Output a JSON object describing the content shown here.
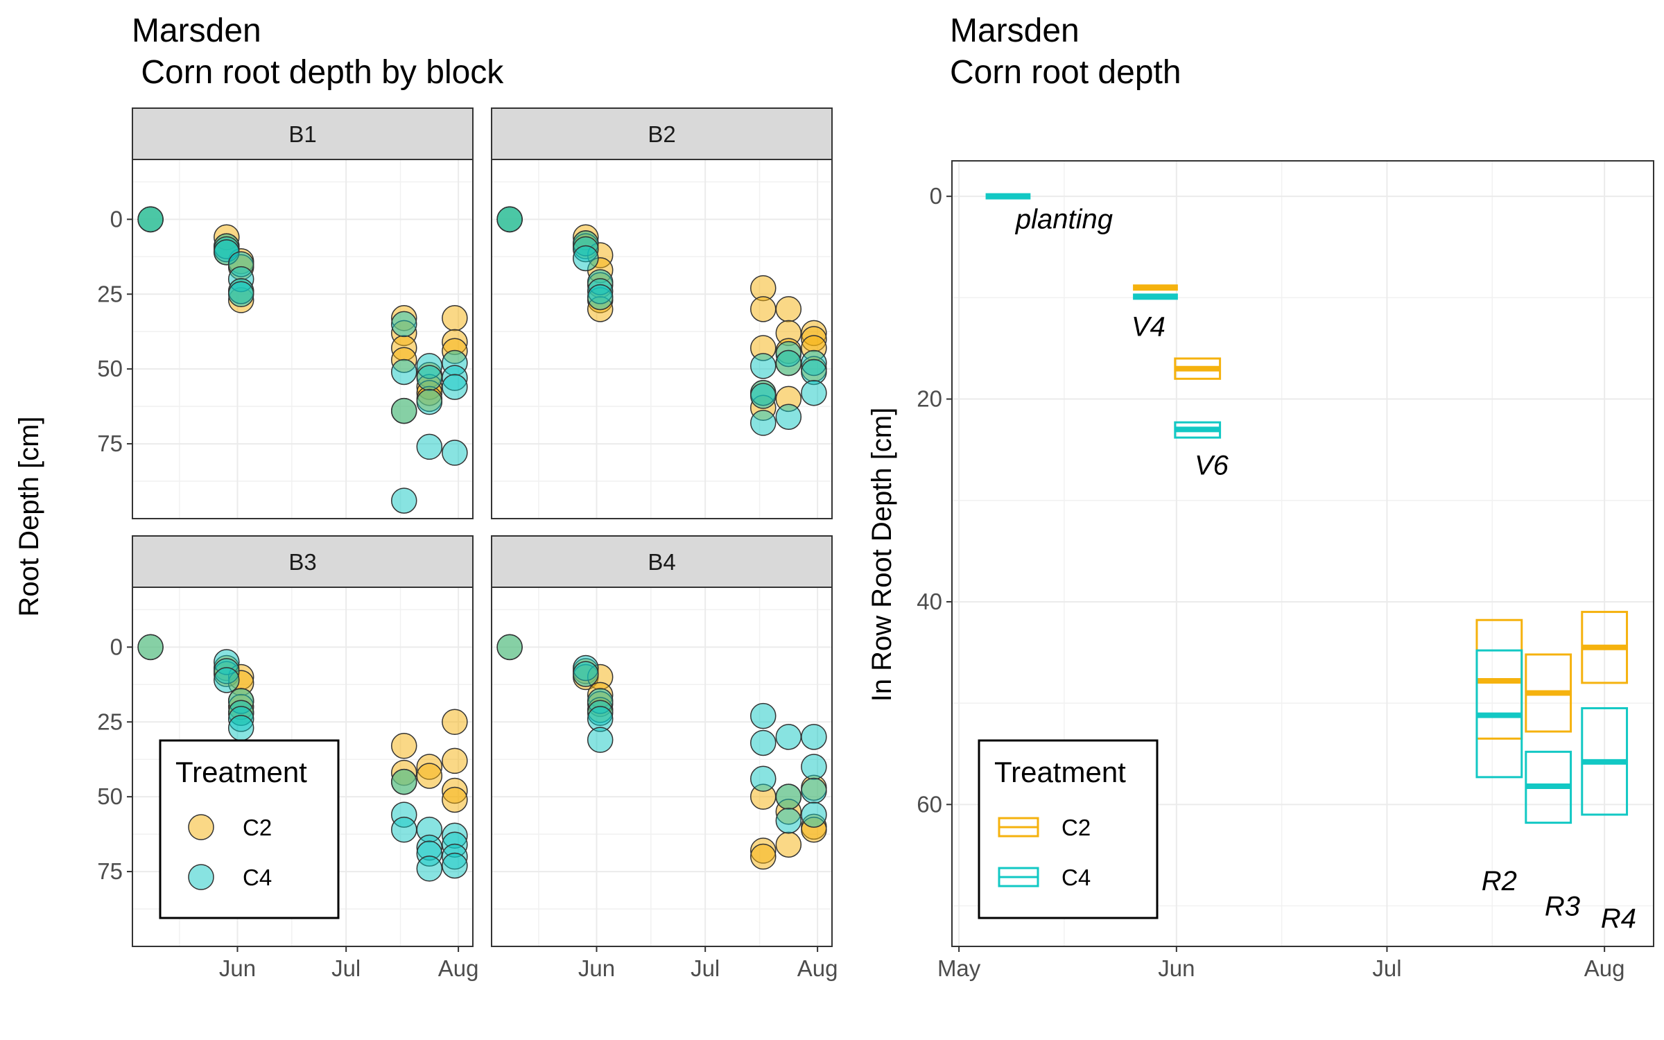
{
  "colors": {
    "C2": "#F5B20E",
    "C4": "#12C8C4"
  },
  "chart_data": [
    {
      "type": "scatter",
      "title": "Marsden",
      "subtitle": " Corn root depth by block",
      "ylabel": "Root Depth [cm]",
      "xlabel": "",
      "x_ticks": [
        "Jun",
        "Jul",
        "Aug"
      ],
      "x_tick_dates": [
        "2018-06-01",
        "2018-07-01",
        "2018-08-01"
      ],
      "xlim": [
        "2018-05-03",
        "2018-08-05"
      ],
      "ylim": [
        100,
        -20
      ],
      "y_reversed": true,
      "y_ticks": [
        0,
        25,
        50,
        75
      ],
      "grid": true,
      "legend": {
        "title": "Treatment",
        "position": "bottom-left",
        "entries": [
          "C2",
          "C4"
        ]
      },
      "facets": [
        {
          "name": "B1",
          "series": [
            {
              "name": "C2",
              "points": [
                [
                  "2018-05-08",
                  0
                ],
                [
                  "2018-05-08",
                  0
                ],
                [
                  "2018-05-29",
                  6
                ],
                [
                  "2018-05-29",
                  9
                ],
                [
                  "2018-05-29",
                  11
                ],
                [
                  "2018-06-02",
                  14
                ],
                [
                  "2018-06-02",
                  16
                ],
                [
                  "2018-06-02",
                  27
                ],
                [
                  "2018-06-02",
                  24
                ],
                [
                  "2018-07-17",
                  33
                ],
                [
                  "2018-07-17",
                  38
                ],
                [
                  "2018-07-17",
                  43
                ],
                [
                  "2018-07-17",
                  47
                ],
                [
                  "2018-07-17",
                  64
                ],
                [
                  "2018-07-24",
                  52
                ],
                [
                  "2018-07-24",
                  56
                ],
                [
                  "2018-07-24",
                  58
                ],
                [
                  "2018-07-24",
                  60
                ],
                [
                  "2018-07-31",
                  33
                ],
                [
                  "2018-07-31",
                  41
                ],
                [
                  "2018-07-31",
                  44
                ]
              ]
            },
            {
              "name": "C4",
              "points": [
                [
                  "2018-05-08",
                  0
                ],
                [
                  "2018-05-08",
                  0
                ],
                [
                  "2018-05-29",
                  9
                ],
                [
                  "2018-05-29",
                  10
                ],
                [
                  "2018-05-29",
                  11
                ],
                [
                  "2018-06-02",
                  15
                ],
                [
                  "2018-06-02",
                  20
                ],
                [
                  "2018-06-02",
                  24
                ],
                [
                  "2018-06-02",
                  25
                ],
                [
                  "2018-07-17",
                  35
                ],
                [
                  "2018-07-17",
                  51
                ],
                [
                  "2018-07-17",
                  64
                ],
                [
                  "2018-07-17",
                  94
                ],
                [
                  "2018-07-24",
                  49
                ],
                [
                  "2018-07-24",
                  53
                ],
                [
                  "2018-07-24",
                  61
                ],
                [
                  "2018-07-24",
                  76
                ],
                [
                  "2018-07-31",
                  48
                ],
                [
                  "2018-07-31",
                  53
                ],
                [
                  "2018-07-31",
                  56
                ],
                [
                  "2018-07-31",
                  78
                ]
              ]
            }
          ]
        },
        {
          "name": "B2",
          "series": [
            {
              "name": "C2",
              "points": [
                [
                  "2018-05-08",
                  0
                ],
                [
                  "2018-05-08",
                  0
                ],
                [
                  "2018-05-29",
                  6
                ],
                [
                  "2018-05-29",
                  8
                ],
                [
                  "2018-05-29",
                  9
                ],
                [
                  "2018-06-02",
                  12
                ],
                [
                  "2018-06-02",
                  17
                ],
                [
                  "2018-06-02",
                  22
                ],
                [
                  "2018-06-02",
                  27
                ],
                [
                  "2018-06-02",
                  30
                ],
                [
                  "2018-07-17",
                  23
                ],
                [
                  "2018-07-17",
                  30
                ],
                [
                  "2018-07-17",
                  43
                ],
                [
                  "2018-07-17",
                  58
                ],
                [
                  "2018-07-17",
                  63
                ],
                [
                  "2018-07-24",
                  30
                ],
                [
                  "2018-07-24",
                  38
                ],
                [
                  "2018-07-24",
                  44
                ],
                [
                  "2018-07-24",
                  48
                ],
                [
                  "2018-07-24",
                  60
                ],
                [
                  "2018-07-31",
                  38
                ],
                [
                  "2018-07-31",
                  40
                ],
                [
                  "2018-07-31",
                  43
                ],
                [
                  "2018-07-31",
                  50
                ]
              ]
            },
            {
              "name": "C4",
              "points": [
                [
                  "2018-05-08",
                  0
                ],
                [
                  "2018-05-08",
                  0
                ],
                [
                  "2018-05-29",
                  8
                ],
                [
                  "2018-05-29",
                  10
                ],
                [
                  "2018-05-29",
                  13
                ],
                [
                  "2018-06-02",
                  21
                ],
                [
                  "2018-06-02",
                  24
                ],
                [
                  "2018-06-02",
                  26
                ],
                [
                  "2018-07-17",
                  49
                ],
                [
                  "2018-07-17",
                  58
                ],
                [
                  "2018-07-17",
                  59
                ],
                [
                  "2018-07-17",
                  68
                ],
                [
                  "2018-07-24",
                  45
                ],
                [
                  "2018-07-24",
                  48
                ],
                [
                  "2018-07-24",
                  66
                ],
                [
                  "2018-07-31",
                  48
                ],
                [
                  "2018-07-31",
                  51
                ],
                [
                  "2018-07-31",
                  58
                ]
              ]
            }
          ]
        },
        {
          "name": "B3",
          "series": [
            {
              "name": "C2",
              "points": [
                [
                  "2018-05-08",
                  0
                ],
                [
                  "2018-05-29",
                  7
                ],
                [
                  "2018-05-29",
                  9
                ],
                [
                  "2018-06-02",
                  10
                ],
                [
                  "2018-06-02",
                  12
                ],
                [
                  "2018-06-02",
                  18
                ],
                [
                  "2018-06-02",
                  20
                ],
                [
                  "2018-06-02",
                  22
                ],
                [
                  "2018-07-17",
                  33
                ],
                [
                  "2018-07-17",
                  42
                ],
                [
                  "2018-07-17",
                  45
                ],
                [
                  "2018-07-24",
                  40
                ],
                [
                  "2018-07-24",
                  43
                ],
                [
                  "2018-07-31",
                  25
                ],
                [
                  "2018-07-31",
                  38
                ],
                [
                  "2018-07-31",
                  48
                ],
                [
                  "2018-07-31",
                  51
                ]
              ]
            },
            {
              "name": "C4",
              "points": [
                [
                  "2018-05-08",
                  0
                ],
                [
                  "2018-05-29",
                  5
                ],
                [
                  "2018-05-29",
                  8
                ],
                [
                  "2018-05-29",
                  11
                ],
                [
                  "2018-06-02",
                  18
                ],
                [
                  "2018-06-02",
                  22
                ],
                [
                  "2018-06-02",
                  24
                ],
                [
                  "2018-06-02",
                  27
                ],
                [
                  "2018-07-17",
                  45
                ],
                [
                  "2018-07-17",
                  56
                ],
                [
                  "2018-07-17",
                  61
                ],
                [
                  "2018-07-24",
                  61
                ],
                [
                  "2018-07-24",
                  67
                ],
                [
                  "2018-07-24",
                  69
                ],
                [
                  "2018-07-24",
                  74
                ],
                [
                  "2018-07-31",
                  63
                ],
                [
                  "2018-07-31",
                  66
                ],
                [
                  "2018-07-31",
                  70
                ],
                [
                  "2018-07-31",
                  73
                ]
              ]
            }
          ]
        },
        {
          "name": "B4",
          "series": [
            {
              "name": "C2",
              "points": [
                [
                  "2018-05-08",
                  0
                ],
                [
                  "2018-05-29",
                  8
                ],
                [
                  "2018-05-29",
                  10
                ],
                [
                  "2018-06-02",
                  10
                ],
                [
                  "2018-06-02",
                  16
                ],
                [
                  "2018-06-02",
                  19
                ],
                [
                  "2018-06-02",
                  21
                ],
                [
                  "2018-07-17",
                  50
                ],
                [
                  "2018-07-17",
                  68
                ],
                [
                  "2018-07-17",
                  70
                ],
                [
                  "2018-07-24",
                  50
                ],
                [
                  "2018-07-24",
                  55
                ],
                [
                  "2018-07-24",
                  66
                ],
                [
                  "2018-07-31",
                  47
                ],
                [
                  "2018-07-31",
                  60
                ],
                [
                  "2018-07-31",
                  61
                ]
              ]
            },
            {
              "name": "C4",
              "points": [
                [
                  "2018-05-08",
                  0
                ],
                [
                  "2018-05-29",
                  7
                ],
                [
                  "2018-05-29",
                  9
                ],
                [
                  "2018-06-02",
                  18
                ],
                [
                  "2018-06-02",
                  22
                ],
                [
                  "2018-06-02",
                  24
                ],
                [
                  "2018-06-02",
                  31
                ],
                [
                  "2018-07-17",
                  23
                ],
                [
                  "2018-07-17",
                  32
                ],
                [
                  "2018-07-17",
                  44
                ],
                [
                  "2018-07-24",
                  30
                ],
                [
                  "2018-07-24",
                  50
                ],
                [
                  "2018-07-24",
                  58
                ],
                [
                  "2018-07-31",
                  30
                ],
                [
                  "2018-07-31",
                  40
                ],
                [
                  "2018-07-31",
                  48
                ],
                [
                  "2018-07-31",
                  56
                ]
              ]
            }
          ]
        }
      ]
    },
    {
      "type": "boxplot",
      "title": "Marsden",
      "subtitle": "Corn root depth",
      "ylabel": "In Row Root Depth [cm]",
      "xlabel": "",
      "x_ticks": [
        "May",
        "Jun",
        "Jul",
        "Aug"
      ],
      "x_tick_dates": [
        "2018-05-01",
        "2018-06-01",
        "2018-07-01",
        "2018-08-01"
      ],
      "xlim": [
        "2018-04-30",
        "2018-08-08"
      ],
      "ylim": [
        74,
        -3.5
      ],
      "y_reversed": true,
      "y_ticks": [
        0,
        20,
        40,
        60
      ],
      "grid": true,
      "legend": {
        "title": "Treatment",
        "position": "bottom-left",
        "entries": [
          "C2",
          "C4"
        ]
      },
      "boxes": [
        {
          "treatment": "C4",
          "date": "2018-05-08",
          "q1": 0,
          "median": 0,
          "q3": 0
        },
        {
          "treatment": "C2",
          "date": "2018-05-29",
          "q1": 8.8,
          "median": 9,
          "q3": 9.2
        },
        {
          "treatment": "C4",
          "date": "2018-05-29",
          "q1": 9.7,
          "median": 9.9,
          "q3": 10.1
        },
        {
          "treatment": "C2",
          "date": "2018-06-04",
          "q1": 16,
          "median": 17,
          "q3": 18
        },
        {
          "treatment": "C4",
          "date": "2018-06-04",
          "q1": 22.3,
          "median": 23,
          "q3": 23.8
        },
        {
          "treatment": "C2",
          "date": "2018-07-17",
          "q1": 41.8,
          "median": 47.8,
          "q3": 53.5
        },
        {
          "treatment": "C4",
          "date": "2018-07-17",
          "q1": 44.8,
          "median": 51.2,
          "q3": 57.3
        },
        {
          "treatment": "C2",
          "date": "2018-07-24",
          "q1": 45.2,
          "median": 49,
          "q3": 52.8
        },
        {
          "treatment": "C4",
          "date": "2018-07-24",
          "q1": 54.8,
          "median": 58.2,
          "q3": 61.8
        },
        {
          "treatment": "C2",
          "date": "2018-08-01",
          "q1": 41,
          "median": 44.5,
          "q3": 48
        },
        {
          "treatment": "C4",
          "date": "2018-08-01",
          "q1": 50.5,
          "median": 55.8,
          "q3": 61
        }
      ],
      "annotations": [
        {
          "text": "planting",
          "date": "2018-05-16",
          "y": 2.2
        },
        {
          "text": "V4",
          "date": "2018-05-28",
          "y": 12.8
        },
        {
          "text": "V6",
          "date": "2018-06-06",
          "y": 26.5
        },
        {
          "text": "R2",
          "date": "2018-07-17",
          "y": 67.5
        },
        {
          "text": "R3",
          "date": "2018-07-26",
          "y": 70
        },
        {
          "text": "R4",
          "date": "2018-08-03",
          "y": 71.2
        }
      ]
    }
  ]
}
